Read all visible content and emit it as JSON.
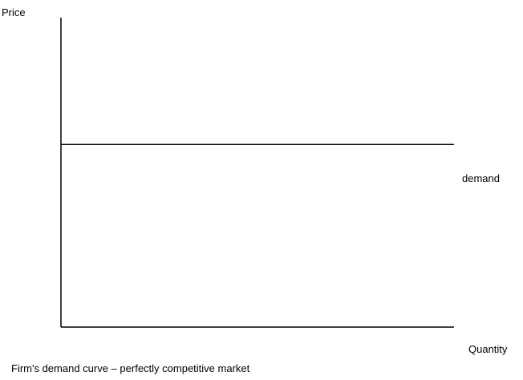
{
  "chart_data": {
    "type": "line",
    "title": "Firm's demand curve – perfectly competitive market",
    "xlabel": "Quantity",
    "ylabel": "Price",
    "series": [
      {
        "name": "demand",
        "x": [
          0,
          1
        ],
        "y": [
          0.59,
          0.59
        ]
      }
    ],
    "xlim": [
      0,
      1
    ],
    "ylim": [
      0,
      1
    ],
    "grid": false,
    "ticks": false
  }
}
